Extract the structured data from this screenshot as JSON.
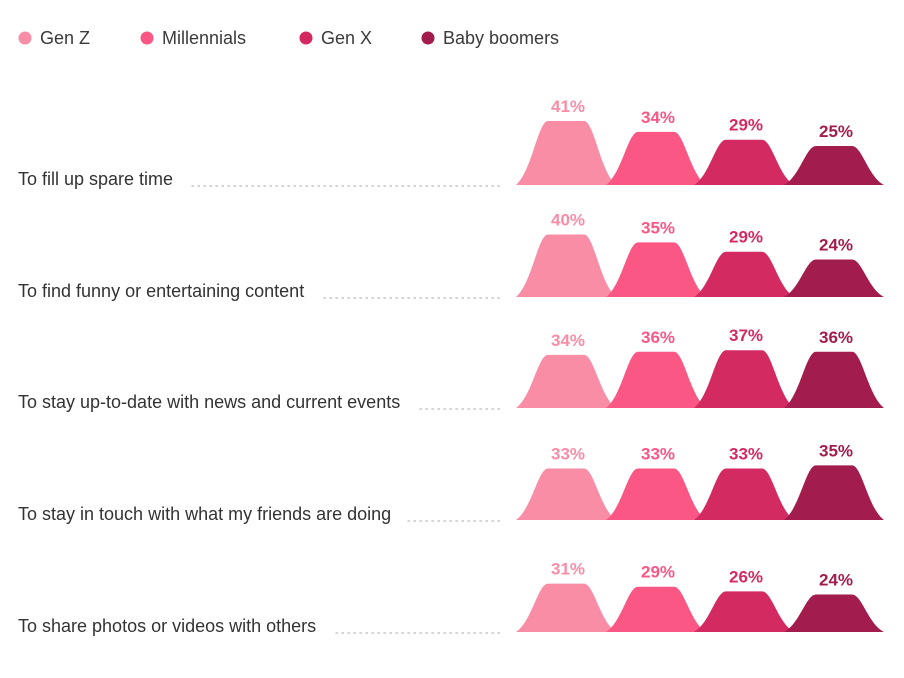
{
  "chart_data": {
    "type": "bar",
    "title": "",
    "xlabel": "",
    "ylabel": "",
    "legend_position": "top-left",
    "grid": false,
    "ylim": [
      0,
      45
    ],
    "categories": [
      "To fill up spare time",
      "To find funny or entertaining content",
      "To stay up-to-date with news and current events",
      "To stay in touch with what my friends are doing",
      "To share photos or videos with others"
    ],
    "series": [
      {
        "name": "Gen Z",
        "color": "#f98da6",
        "values": [
          41,
          40,
          34,
          33,
          31
        ],
        "labels": [
          "41%",
          "40%",
          "34%",
          "33%",
          "31%"
        ]
      },
      {
        "name": "Millennials",
        "color": "#fb5785",
        "values": [
          34,
          35,
          36,
          33,
          29
        ],
        "labels": [
          "34%",
          "35%",
          "36%",
          "33%",
          "29%"
        ]
      },
      {
        "name": "Gen X",
        "color": "#d42a62",
        "values": [
          29,
          29,
          37,
          33,
          26
        ],
        "labels": [
          "29%",
          "29%",
          "37%",
          "33%",
          "26%"
        ]
      },
      {
        "name": "Baby boomers",
        "color": "#a21d4d",
        "values": [
          25,
          24,
          36,
          35,
          24
        ],
        "labels": [
          "25%",
          "24%",
          "36%",
          "35%",
          "24%"
        ]
      }
    ]
  }
}
